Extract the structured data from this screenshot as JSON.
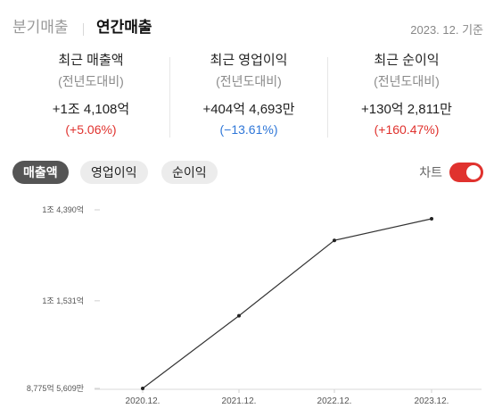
{
  "header": {
    "tabs": [
      {
        "label": "분기매출"
      },
      {
        "label": "연간매출"
      }
    ],
    "as_of": "2023. 12. 기준"
  },
  "summary": [
    {
      "label": "최근 매출액",
      "sub": "(전년도대비)",
      "value": "+1조 4,108억",
      "change": "(+5.06%)"
    },
    {
      "label": "최근 영업이익",
      "sub": "(전년도대비)",
      "value": "+404억 4,693만",
      "change": "(−13.61%)"
    },
    {
      "label": "최근 순이익",
      "sub": "(전년도대비)",
      "value": "+130억 2,811만",
      "change": "(+160.47%)"
    }
  ],
  "metric_pills": [
    {
      "label": "매출액"
    },
    {
      "label": "영업이익"
    },
    {
      "label": "순이익"
    }
  ],
  "chart_toggle": {
    "label": "차트",
    "on": true
  },
  "colors": {
    "accent": "#e0322e",
    "negative": "#2f77d8",
    "line": "#333333"
  },
  "chart_data": {
    "type": "line",
    "categories": [
      "2020.12.",
      "2021.12.",
      "2022.12.",
      "2023.12."
    ],
    "series": [
      {
        "values": [
          877556090000,
          1106000000000,
          1343000000000,
          1410800000000
        ]
      }
    ],
    "yticks": [
      {
        "value": 877556090000,
        "label": "8,775억 5,609만"
      },
      {
        "value": 1153100000000,
        "label": "1조 1,531억"
      },
      {
        "value": 1439000000000,
        "label": "1조 4,390억"
      }
    ],
    "ylim": [
      877556090000,
      1439000000000
    ],
    "grid": false
  }
}
